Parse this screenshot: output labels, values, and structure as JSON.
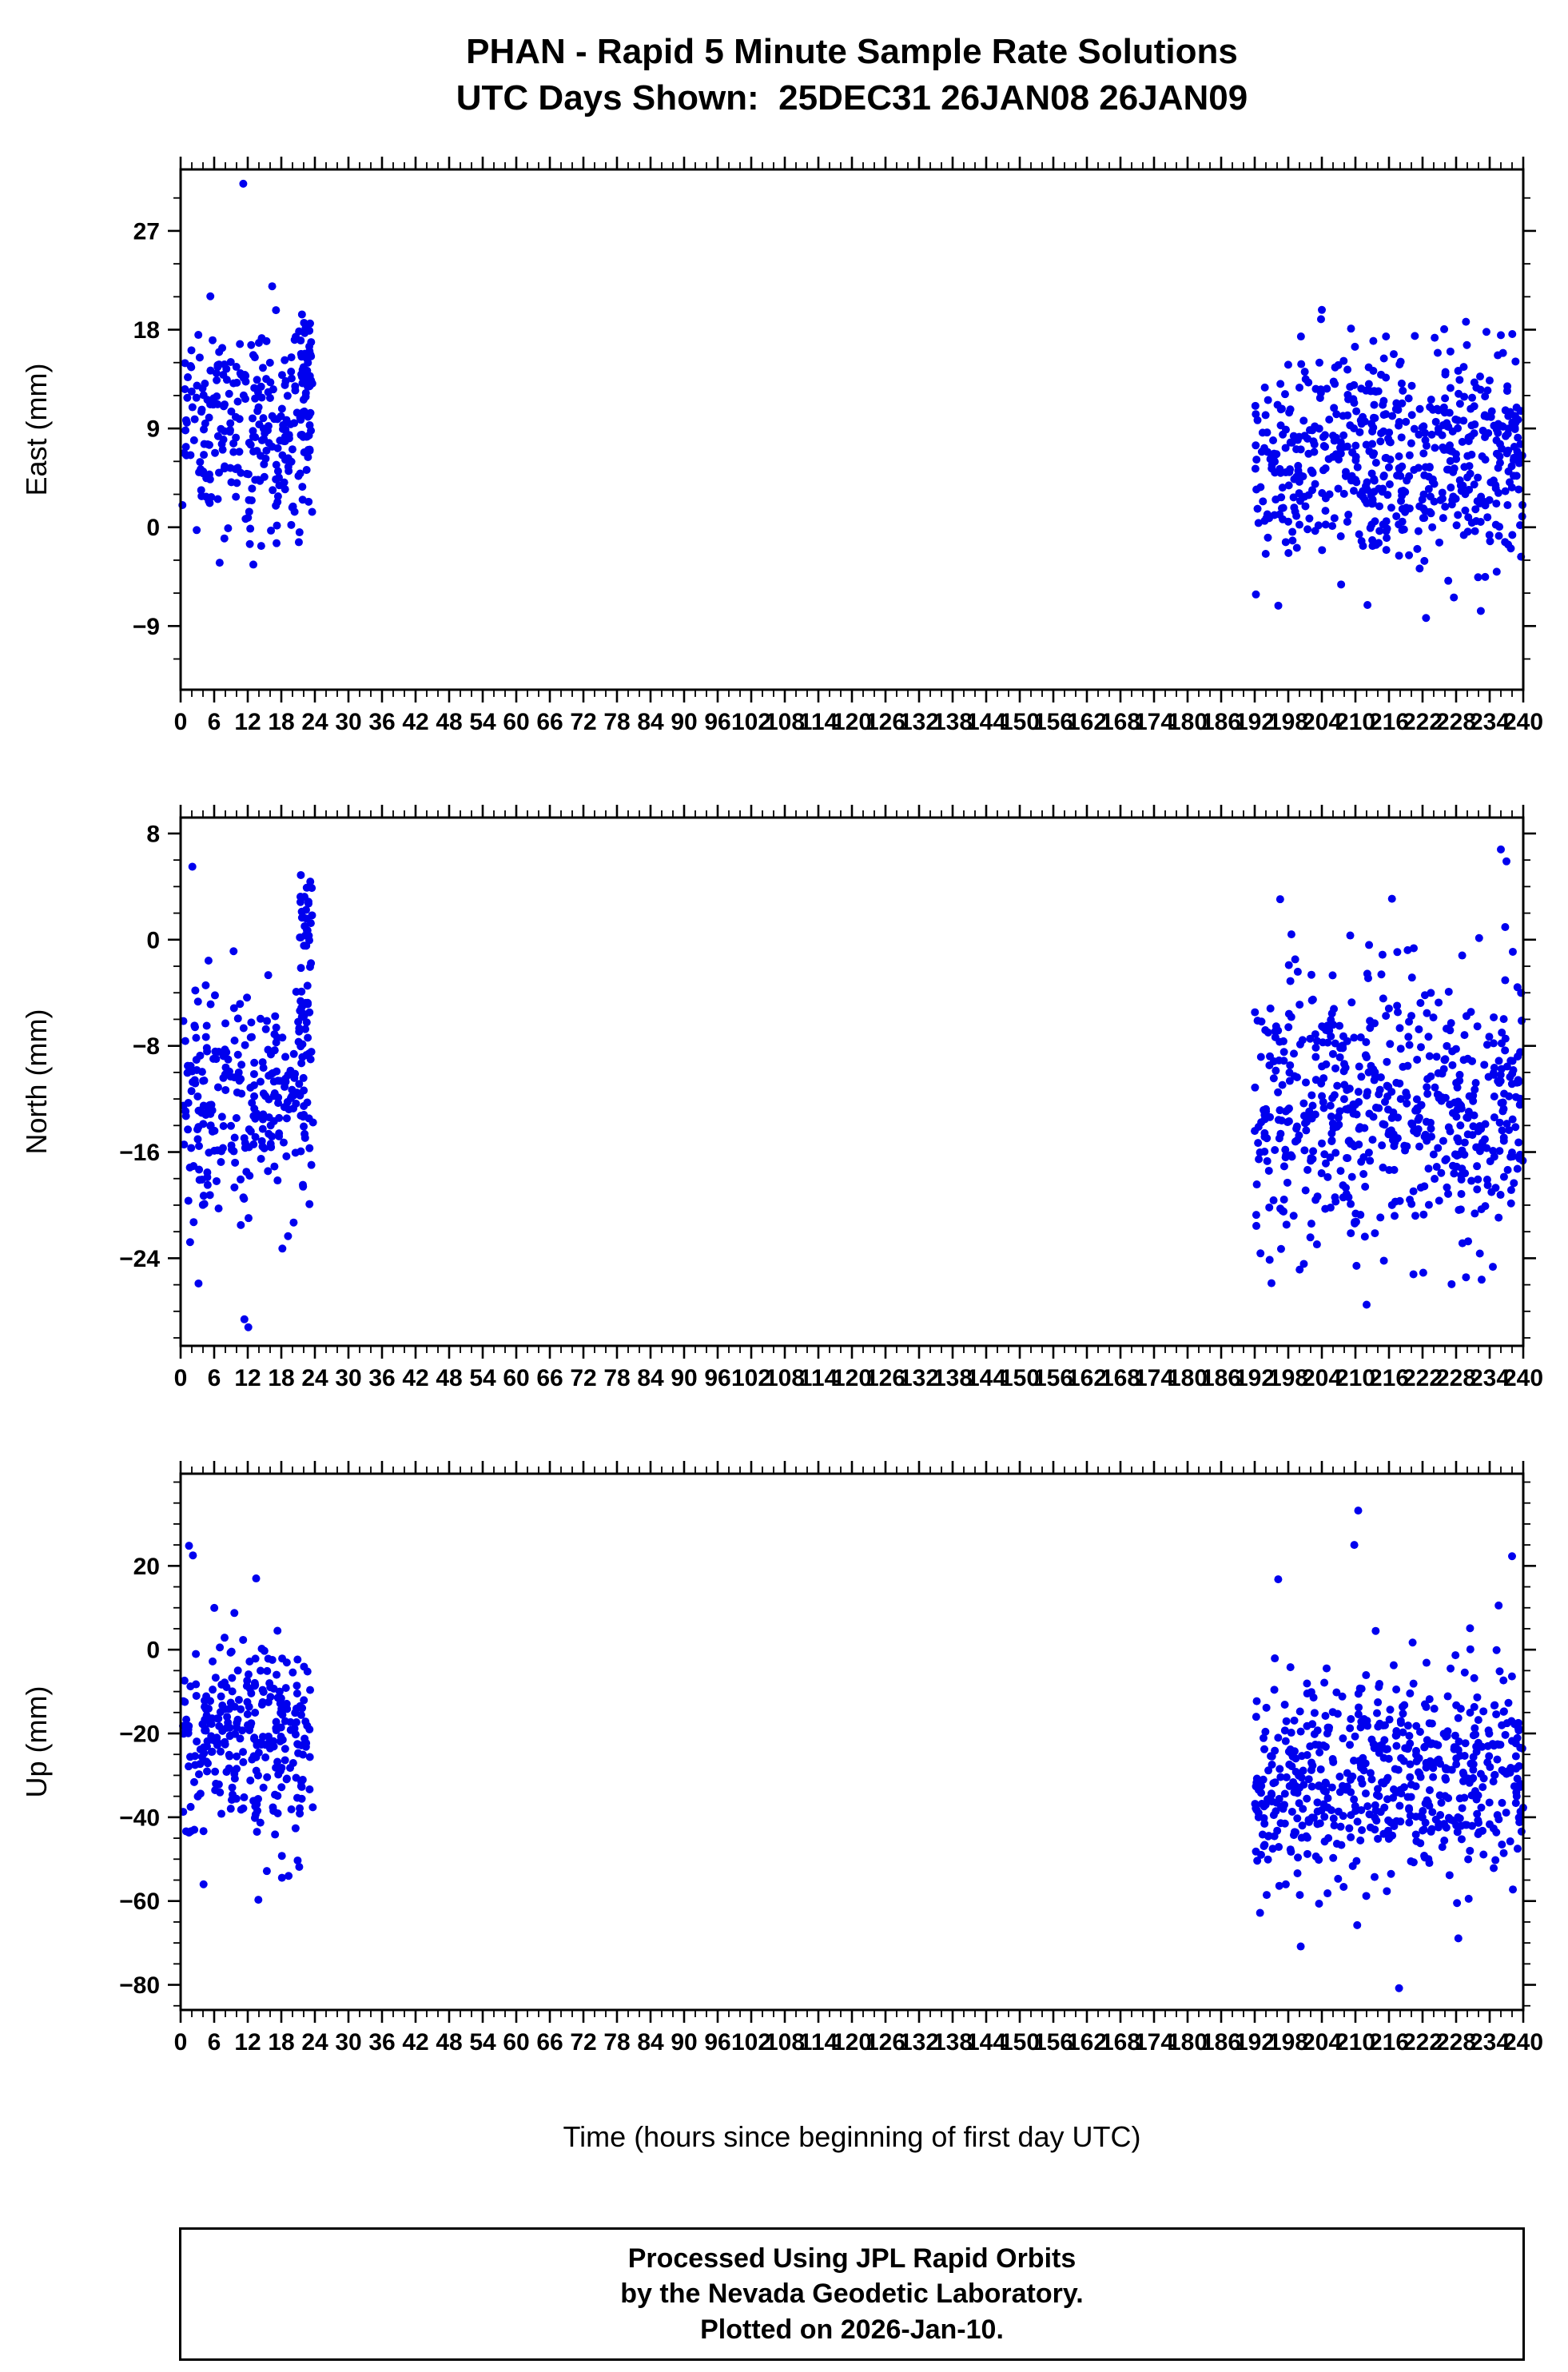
{
  "title": {
    "line1": "PHAN - Rapid 5 Minute Sample Rate Solutions",
    "line2": "UTC Days Shown:  25DEC31 26JAN08 26JAN09"
  },
  "x_axis_label": "Time (hours since beginning of first day UTC)",
  "footer": {
    "line1": "Processed Using JPL Rapid Orbits",
    "line2": "by the Nevada Geodetic Laboratory.",
    "line3": "Plotted on 2026-Jan-10."
  },
  "colors": {
    "point": "#0000ee",
    "axis": "#000000",
    "background": "#ffffff"
  },
  "chart_data": {
    "type": "scatter",
    "title": "PHAN - Rapid 5 Minute Sample Rate Solutions",
    "subtitle": "UTC Days Shown:  25DEC31 26JAN08 26JAN09",
    "xlabel": "Time (hours since beginning of first day UTC)",
    "legend": "none",
    "grid": false,
    "x_axis": {
      "min": 0,
      "max": 240,
      "major_step": 6,
      "minor_step": 2,
      "tick_labels": [
        0,
        6,
        12,
        18,
        24,
        30,
        36,
        42,
        48,
        54,
        60,
        66,
        72,
        78,
        84,
        90,
        96,
        102,
        108,
        114,
        120,
        126,
        132,
        138,
        144,
        150,
        156,
        162,
        168,
        174,
        180,
        186,
        192,
        198,
        204,
        210,
        216,
        222,
        228,
        234,
        240
      ]
    },
    "panels": [
      {
        "ylabel": "East (mm)",
        "ylim": [
          -14.8,
          32.6
        ],
        "yticks": [
          -9,
          0,
          9,
          18,
          27
        ],
        "ytick_minor_step": 3,
        "clusters": [
          {
            "x_min": 0.3,
            "x_max": 23.7,
            "n": 260,
            "y_mean": 9.2,
            "y_sd": 4.6,
            "y_min": -3.6,
            "y_max": 22.6
          },
          {
            "x_min": 21.3,
            "x_max": 23.5,
            "n": 45,
            "y_mean": 14.5,
            "y_sd": 3.2,
            "y_min": 6.0,
            "y_max": 20.8
          },
          {
            "x_min": 192.0,
            "x_max": 240.0,
            "n": 575,
            "y_mean": 6.2,
            "y_sd": 5.0,
            "y_min": -13.6,
            "y_max": 20.6
          }
        ],
        "outliers": [
          [
            11.2,
            31.3
          ],
          [
            204.0,
            19.8
          ],
          [
            236.0,
            17.5
          ],
          [
            13.0,
            -3.4
          ]
        ]
      },
      {
        "ylabel": "North (mm)",
        "ylim": [
          -30.6,
          9.2
        ],
        "yticks": [
          -24,
          -16,
          -8,
          0,
          8
        ],
        "ytick_minor_step": 2,
        "clusters": [
          {
            "x_min": 0.3,
            "x_max": 23.7,
            "n": 260,
            "y_mean": -12.6,
            "y_sd": 4.2,
            "y_min": -23.5,
            "y_max": 5.6
          },
          {
            "x_min": 21.3,
            "x_max": 23.5,
            "n": 45,
            "y_mean": -1.5,
            "y_sd": 3.6,
            "y_min": -8.6,
            "y_max": 6.2
          },
          {
            "x_min": 192.0,
            "x_max": 240.0,
            "n": 575,
            "y_mean": -12.8,
            "y_sd": 5.2,
            "y_min": -26.8,
            "y_max": 8.0
          }
        ],
        "outliers": [
          [
            11.4,
            -28.6
          ],
          [
            12.1,
            -29.2
          ],
          [
            3.2,
            -25.9
          ],
          [
            2.1,
            5.5
          ],
          [
            212.0,
            -27.5
          ],
          [
            236.0,
            6.8
          ],
          [
            237.0,
            5.9
          ]
        ]
      },
      {
        "ylabel": "Up (mm)",
        "ylim": [
          -86,
          42
        ],
        "yticks": [
          -80,
          -60,
          -40,
          -20,
          0,
          20
        ],
        "ytick_minor_step": 5,
        "clusters": [
          {
            "x_min": 0.3,
            "x_max": 23.7,
            "n": 288,
            "y_mean": -22.0,
            "y_sd": 12.0,
            "y_min": -59.5,
            "y_max": 25.0
          },
          {
            "x_min": 192.0,
            "x_max": 240.0,
            "n": 575,
            "y_mean": -31.5,
            "y_sd": 12.5,
            "y_min": -80.5,
            "y_max": 33.5
          }
        ],
        "outliers": [
          [
            1.5,
            24.8
          ],
          [
            2.2,
            22.5
          ],
          [
            13.5,
            17.0
          ],
          [
            4.1,
            -56.0
          ],
          [
            13.9,
            -59.7
          ],
          [
            19.3,
            -54.0
          ],
          [
            210.5,
            33.2
          ],
          [
            209.8,
            25.0
          ],
          [
            196.2,
            16.8
          ],
          [
            217.8,
            -80.8
          ],
          [
            228.4,
            -68.9
          ],
          [
            238.0,
            22.3
          ]
        ]
      }
    ]
  }
}
